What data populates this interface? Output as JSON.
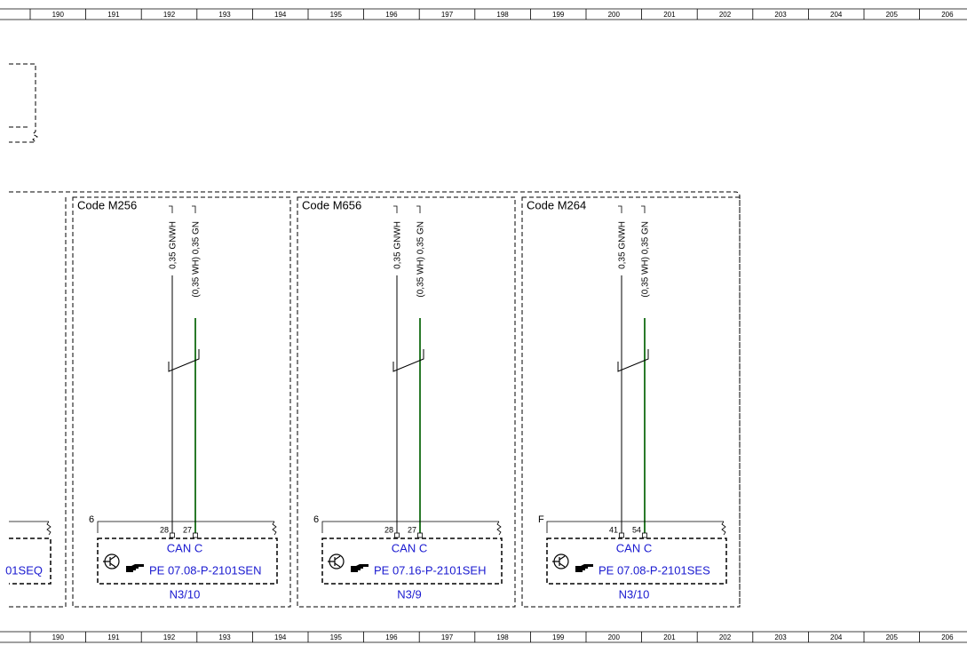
{
  "ruler": [
    "190",
    "191",
    "192",
    "193",
    "194",
    "195",
    "196",
    "197",
    "198",
    "199",
    "200",
    "201",
    "202",
    "203",
    "204",
    "205",
    "206"
  ],
  "left_fragment": {
    "ref": "01SEQ"
  },
  "modules": [
    {
      "code": "Code M256",
      "wires": [
        "0,35 GNWH",
        "(0,35 WH) 0,35 GN"
      ],
      "connector": "6",
      "pins": [
        "28",
        "27"
      ],
      "bus": "CAN C",
      "ref": "PE 07.08-P-2101SEN",
      "component": "N3/10"
    },
    {
      "code": "Code M656",
      "wires": [
        "0,35 GNWH",
        "(0,35 WH) 0,35 GN"
      ],
      "connector": "6",
      "pins": [
        "28",
        "27"
      ],
      "bus": "CAN C",
      "ref": "PE 07.16-P-2101SEH",
      "component": "N3/9"
    },
    {
      "code": "Code M264",
      "wires": [
        "0,35 GNWH",
        "(0,35 WH) 0,35 GN"
      ],
      "connector": "F",
      "pins": [
        "41",
        "54"
      ],
      "bus": "CAN C",
      "ref": "PE 07.08-P-2101SES",
      "component": "N3/10"
    }
  ]
}
